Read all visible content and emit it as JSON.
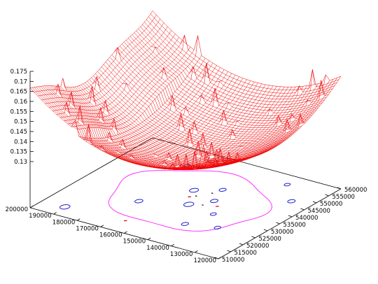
{
  "chart_data": {
    "type": "surface",
    "title": "",
    "surface_color": "#ee0000",
    "contour_colors": [
      "#ff33ff",
      "#2222cc",
      "#cc0000",
      "#000000"
    ],
    "zlim": [
      0.13,
      0.175
    ],
    "zticks": [
      "0.175",
      "0.17",
      "0.165",
      "0.16",
      "0.155",
      "0.15",
      "0.145",
      "0.14",
      "0.135",
      "0.13"
    ],
    "xlim": [
      120000,
      200000
    ],
    "xticks": [
      "200000",
      "190000",
      "180000",
      "170000",
      "160000",
      "150000",
      "140000",
      "130000",
      "120000"
    ],
    "ylim": [
      510000,
      560000
    ],
    "yticks": [
      "510000",
      "515000",
      "520000",
      "525000",
      "530000",
      "535000",
      "540000",
      "545000",
      "550000",
      "555000",
      "560000"
    ],
    "grid": false,
    "legend": "none",
    "surface_description": "bowl-shaped mesh, minimum near 0.13 at centre, rising to about 0.165-0.175 along the far edges, with sharp spikes along ridge lines"
  }
}
